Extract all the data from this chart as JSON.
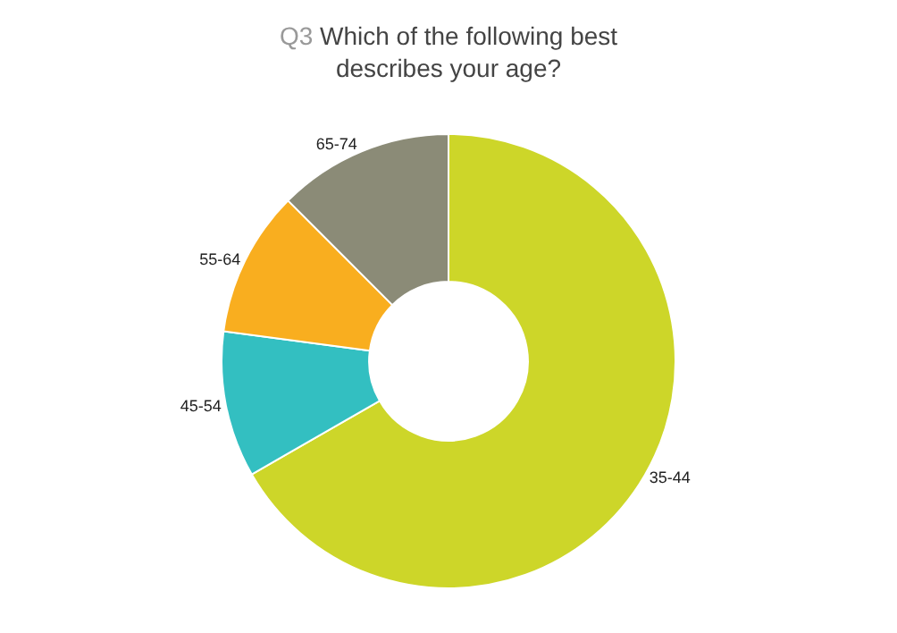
{
  "chart_data": {
    "type": "donut",
    "title": "Q3 Which of the following best describes your age?",
    "categories": [
      "35-44",
      "45-54",
      "55-64",
      "65-74"
    ],
    "values": [
      66.7,
      10.4,
      10.4,
      12.5
    ],
    "colors": [
      "#cdd629",
      "#33bfc1",
      "#f9ae1f",
      "#8b8b77"
    ],
    "legend": false
  }
}
